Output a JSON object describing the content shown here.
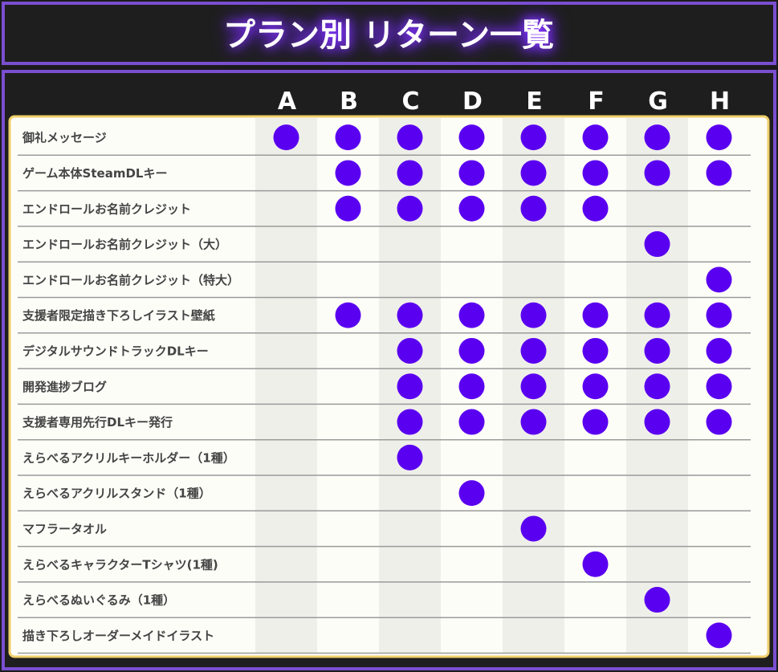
{
  "header": {
    "title": "プラン別 リターン一覧"
  },
  "table": {
    "columns": [
      "A",
      "B",
      "C",
      "D",
      "E",
      "F",
      "G",
      "H"
    ],
    "rows": [
      {
        "label": "御礼メッセージ",
        "cells": [
          true,
          true,
          true,
          true,
          true,
          true,
          true,
          true
        ]
      },
      {
        "label": "ゲーム本体SteamDLキー",
        "cells": [
          false,
          true,
          true,
          true,
          true,
          true,
          true,
          true
        ]
      },
      {
        "label": "エンドロールお名前クレジット",
        "cells": [
          false,
          true,
          true,
          true,
          true,
          true,
          false,
          false
        ]
      },
      {
        "label": "エンドロールお名前クレジット（大）",
        "cells": [
          false,
          false,
          false,
          false,
          false,
          false,
          true,
          false
        ]
      },
      {
        "label": "エンドロールお名前クレジット（特大）",
        "cells": [
          false,
          false,
          false,
          false,
          false,
          false,
          false,
          true
        ]
      },
      {
        "label": "支援者限定描き下ろしイラスト壁紙",
        "cells": [
          false,
          true,
          true,
          true,
          true,
          true,
          true,
          true
        ]
      },
      {
        "label": "デジタルサウンドトラックDLキー",
        "cells": [
          false,
          false,
          true,
          true,
          true,
          true,
          true,
          true
        ]
      },
      {
        "label": "開発進捗ブログ",
        "cells": [
          false,
          false,
          true,
          true,
          true,
          true,
          true,
          true
        ]
      },
      {
        "label": "支援者専用先行DLキー発行",
        "cells": [
          false,
          false,
          true,
          true,
          true,
          true,
          true,
          true
        ]
      },
      {
        "label": "えらべるアクリルキーホルダー（1種）",
        "cells": [
          false,
          false,
          true,
          false,
          false,
          false,
          false,
          false
        ]
      },
      {
        "label": "えらべるアクリルスタンド（1種）",
        "cells": [
          false,
          false,
          false,
          true,
          false,
          false,
          false,
          false
        ]
      },
      {
        "label": "マフラータオル",
        "cells": [
          false,
          false,
          false,
          false,
          true,
          false,
          false,
          false
        ]
      },
      {
        "label": "えらべるキャラクターTシャツ(1種)",
        "cells": [
          false,
          false,
          false,
          false,
          false,
          true,
          false,
          false
        ]
      },
      {
        "label": "えらべるぬいぐるみ（1種）",
        "cells": [
          false,
          false,
          false,
          false,
          false,
          false,
          true,
          false
        ]
      },
      {
        "label": "描き下ろしオーダーメイドイラスト",
        "cells": [
          false,
          false,
          false,
          false,
          false,
          false,
          false,
          true
        ]
      }
    ]
  }
}
